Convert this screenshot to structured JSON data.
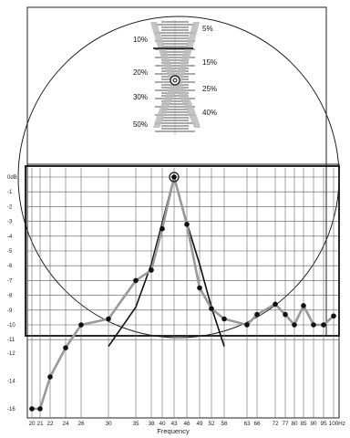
{
  "chart_data": {
    "type": "line",
    "title": "",
    "xlabel": "Frequency",
    "ylabel": "",
    "x_tick_labels": [
      "20",
      "21",
      "22",
      "24",
      "26",
      "30",
      "35",
      "38",
      "40",
      "43",
      "46",
      "49",
      "52",
      "56",
      "63",
      "66",
      "72",
      "77",
      "80",
      "85",
      "90",
      "95",
      "100",
      "Hz"
    ],
    "y_tick_labels": [
      "0dB",
      "-1",
      "-2",
      "-3",
      "-4",
      "-5",
      "-6",
      "-7",
      "-8",
      "-9",
      "-10",
      "-11",
      "-12",
      "-14",
      "-16"
    ],
    "ylim": [
      -16,
      0
    ],
    "grid": true,
    "series": [
      {
        "style": "gray line with dots",
        "x": [
          20,
          21,
          22,
          24,
          26,
          30,
          35,
          38,
          40,
          43,
          46,
          49,
          52,
          56,
          63,
          66,
          72,
          77,
          80,
          85,
          90,
          95,
          100
        ],
        "y": [
          -16,
          -16,
          -13.7,
          -11.6,
          -10,
          -9.6,
          -7,
          -6.3,
          -3.5,
          0,
          -3.2,
          -7.5,
          -8.9,
          -9.6,
          -10,
          -9.3,
          -8.6,
          -9.3,
          -10,
          -8.7,
          -10,
          -10,
          -9.4
        ]
      },
      {
        "style": "black response curve",
        "x": [
          30,
          35,
          38,
          40,
          43,
          46,
          49,
          52,
          56
        ],
        "y": [
          -11.5,
          -8.8,
          -5.9,
          -3.1,
          0,
          -3.1,
          -5.9,
          -8.8,
          -11.5
        ]
      }
    ]
  },
  "gauge": {
    "left_labels": [
      "10%",
      "20%",
      "30%",
      "50%"
    ],
    "right_labels": [
      "5%",
      "15%",
      "25%",
      "40%"
    ]
  }
}
